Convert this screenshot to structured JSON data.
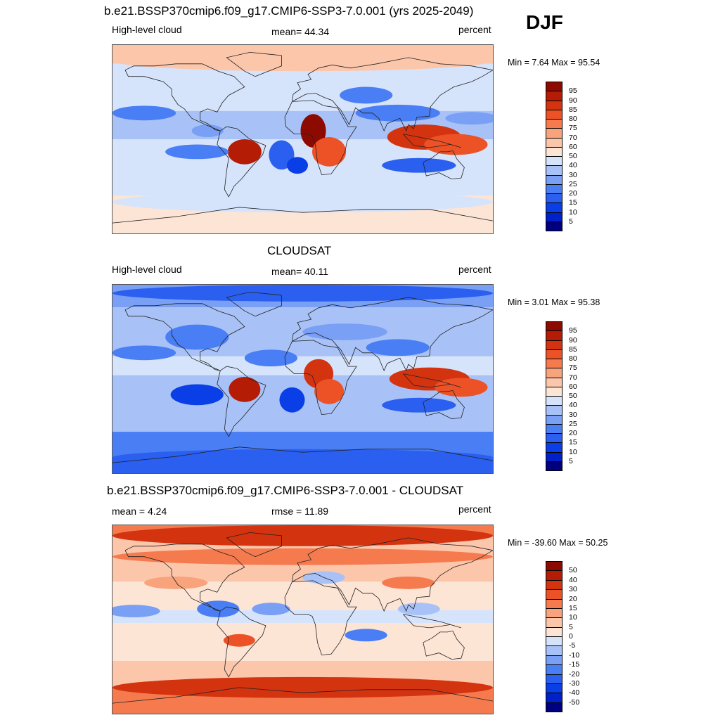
{
  "season": "DJF",
  "panels": [
    {
      "id": "model",
      "title": "b.e21.BSSP370cmip6.f09_g17.CMIP6-SSP3-7.0.001 (yrs 2025-2049)",
      "left_label": "High-level cloud",
      "center_label": "mean=  44.34",
      "right_label": "percent",
      "minmax": "Min =   7.64 Max =  95.54"
    },
    {
      "id": "obs",
      "title": "CLOUDSAT",
      "left_label": "High-level cloud",
      "center_label": "mean=  40.11",
      "right_label": "percent",
      "minmax": "Min =   3.01 Max =  95.38"
    },
    {
      "id": "diff",
      "title": "b.e21.BSSP370cmip6.f09_g17.CMIP6-SSP3-7.0.001 - CLOUDSAT",
      "left_label": "mean =   4.24",
      "center_label": "rmse =  11.89",
      "right_label": "percent",
      "minmax": "Min = -39.60 Max =  50.25"
    }
  ],
  "chart_data": [
    {
      "type": "heatmap",
      "title": "High-level cloud (model)",
      "units": "percent",
      "x_range": [
        -180,
        180
      ],
      "y_range": [
        -90,
        90
      ],
      "mean": 44.34,
      "min": 7.64,
      "max": 95.54,
      "colorbar_levels": [
        "5",
        "10",
        "15",
        "20",
        "25",
        "30",
        "40",
        "50",
        "60",
        "70",
        "75",
        "80",
        "85",
        "90",
        "95"
      ],
      "colorbar_colors": [
        "#00007f",
        "#0020c8",
        "#0a3ee6",
        "#2a5ff0",
        "#4a7ef4",
        "#7aa0f6",
        "#a8c2f7",
        "#d6e4fb",
        "#fde5d6",
        "#fcc6ab",
        "#f9a37d",
        "#f57b4f",
        "#ec5226",
        "#d43310",
        "#b41c06",
        "#8c0a00"
      ],
      "blobs": [
        {
          "lon": 10,
          "lat": 8,
          "rx": 12,
          "ry": 16,
          "level": 95
        },
        {
          "lon": 25,
          "lat": -12,
          "rx": 16,
          "ry": 14,
          "level": 80
        },
        {
          "lon": 115,
          "lat": 2,
          "rx": 35,
          "ry": 12,
          "level": 85
        },
        {
          "lon": 145,
          "lat": -5,
          "rx": 30,
          "ry": 10,
          "level": 80
        },
        {
          "lon": -55,
          "lat": -12,
          "rx": 16,
          "ry": 12,
          "level": 90
        },
        {
          "lon": 90,
          "lat": 25,
          "rx": 40,
          "ry": 8,
          "level": 20
        },
        {
          "lon": -150,
          "lat": 25,
          "rx": 30,
          "ry": 7,
          "level": 20
        },
        {
          "lon": 160,
          "lat": 20,
          "rx": 25,
          "ry": 6,
          "level": 25
        },
        {
          "lon": 110,
          "lat": -25,
          "rx": 35,
          "ry": 7,
          "level": 15
        },
        {
          "lon": -100,
          "lat": -12,
          "rx": 30,
          "ry": 7,
          "level": 20
        },
        {
          "lon": -20,
          "lat": -15,
          "rx": 12,
          "ry": 14,
          "level": 15
        },
        {
          "lon": 60,
          "lat": 42,
          "rx": 25,
          "ry": 8,
          "level": 20
        },
        {
          "lon": -90,
          "lat": 8,
          "rx": 15,
          "ry": 6,
          "level": 25
        },
        {
          "lon": -5,
          "lat": -25,
          "rx": 10,
          "ry": 8,
          "level": 10
        },
        {
          "lon": 0,
          "lat": 75,
          "rx": 180,
          "ry": 10,
          "level": 60
        },
        {
          "lon": 0,
          "lat": -60,
          "rx": 180,
          "ry": 10,
          "level": 40
        }
      ]
    },
    {
      "type": "heatmap",
      "title": "High-level cloud (CLOUDSAT)",
      "units": "percent",
      "x_range": [
        -180,
        180
      ],
      "y_range": [
        -90,
        90
      ],
      "mean": 40.11,
      "min": 3.01,
      "max": 95.38,
      "colorbar_levels": [
        "5",
        "10",
        "15",
        "20",
        "25",
        "30",
        "40",
        "50",
        "60",
        "70",
        "75",
        "80",
        "85",
        "90",
        "95"
      ],
      "colorbar_colors": [
        "#00007f",
        "#0020c8",
        "#0a3ee6",
        "#2a5ff0",
        "#4a7ef4",
        "#7aa0f6",
        "#a8c2f7",
        "#d6e4fb",
        "#fde5d6",
        "#fcc6ab",
        "#f9a37d",
        "#f57b4f",
        "#ec5226",
        "#d43310",
        "#b41c06",
        "#8c0a00"
      ],
      "blobs": [
        {
          "lon": 15,
          "lat": 5,
          "rx": 14,
          "ry": 14,
          "level": 85
        },
        {
          "lon": 25,
          "lat": -12,
          "rx": 14,
          "ry": 12,
          "level": 80
        },
        {
          "lon": 120,
          "lat": 0,
          "rx": 38,
          "ry": 11,
          "level": 85
        },
        {
          "lon": 150,
          "lat": -8,
          "rx": 25,
          "ry": 9,
          "level": 80
        },
        {
          "lon": -55,
          "lat": -10,
          "rx": 15,
          "ry": 12,
          "level": 90
        },
        {
          "lon": 0,
          "lat": 82,
          "rx": 180,
          "ry": 8,
          "level": 15
        },
        {
          "lon": -100,
          "lat": 40,
          "rx": 30,
          "ry": 12,
          "level": 20
        },
        {
          "lon": 90,
          "lat": 30,
          "rx": 30,
          "ry": 8,
          "level": 20
        },
        {
          "lon": -150,
          "lat": 25,
          "rx": 30,
          "ry": 7,
          "level": 20
        },
        {
          "lon": 110,
          "lat": -25,
          "rx": 35,
          "ry": 7,
          "level": 15
        },
        {
          "lon": -100,
          "lat": -15,
          "rx": 25,
          "ry": 10,
          "level": 10
        },
        {
          "lon": -10,
          "lat": -20,
          "rx": 12,
          "ry": 12,
          "level": 10
        },
        {
          "lon": 0,
          "lat": -75,
          "rx": 180,
          "ry": 8,
          "level": 15
        },
        {
          "lon": 40,
          "lat": 45,
          "rx": 40,
          "ry": 8,
          "level": 25
        },
        {
          "lon": -30,
          "lat": 20,
          "rx": 25,
          "ry": 8,
          "level": 20
        }
      ]
    },
    {
      "type": "heatmap",
      "title": "Model - CLOUDSAT",
      "units": "percent",
      "x_range": [
        -180,
        180
      ],
      "y_range": [
        -90,
        90
      ],
      "mean": 4.24,
      "rmse": 11.89,
      "min": -39.6,
      "max": 50.25,
      "colorbar_levels": [
        "-50",
        "-40",
        "-30",
        "-20",
        "-15",
        "-10",
        "-5",
        "0",
        "5",
        "10",
        "15",
        "20",
        "30",
        "40",
        "50"
      ],
      "colorbar_colors": [
        "#00007f",
        "#0020c8",
        "#0a3ee6",
        "#2a5ff0",
        "#4a7ef4",
        "#7aa0f6",
        "#a8c2f7",
        "#d6e4fb",
        "#fde5d6",
        "#fcc6ab",
        "#f9a37d",
        "#f57b4f",
        "#ec5226",
        "#d43310",
        "#b41c06",
        "#8c0a00"
      ],
      "blobs": [
        {
          "lon": 0,
          "lat": 80,
          "rx": 180,
          "ry": 10,
          "level": 30
        },
        {
          "lon": 0,
          "lat": 60,
          "rx": 180,
          "ry": 8,
          "level": 15
        },
        {
          "lon": 0,
          "lat": -65,
          "rx": 180,
          "ry": 10,
          "level": 30
        },
        {
          "lon": -80,
          "lat": 10,
          "rx": 20,
          "ry": 8,
          "level": -20
        },
        {
          "lon": -160,
          "lat": 8,
          "rx": 25,
          "ry": 6,
          "level": -15
        },
        {
          "lon": 60,
          "lat": -15,
          "rx": 20,
          "ry": 6,
          "level": -20
        },
        {
          "lon": 110,
          "lat": 10,
          "rx": 20,
          "ry": 6,
          "level": -10
        },
        {
          "lon": -30,
          "lat": 10,
          "rx": 18,
          "ry": 6,
          "level": -15
        },
        {
          "lon": 20,
          "lat": 40,
          "rx": 20,
          "ry": 6,
          "level": -10
        },
        {
          "lon": -60,
          "lat": -20,
          "rx": 15,
          "ry": 6,
          "level": 20
        },
        {
          "lon": 100,
          "lat": 35,
          "rx": 25,
          "ry": 6,
          "level": 15
        },
        {
          "lon": -120,
          "lat": 35,
          "rx": 30,
          "ry": 6,
          "level": 10
        }
      ]
    }
  ]
}
